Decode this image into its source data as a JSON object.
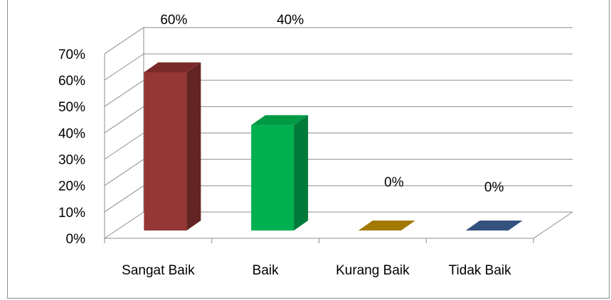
{
  "chart_data": {
    "type": "bar",
    "categories": [
      "Sangat Baik",
      "Baik",
      "Kurang Baik",
      "Tidak Baik"
    ],
    "values": [
      60,
      40,
      0,
      0
    ],
    "data_labels": [
      "60%",
      "40%",
      "0%",
      "0%"
    ],
    "y_ticks": [
      "0%",
      "10%",
      "20%",
      "30%",
      "40%",
      "50%",
      "60%",
      "70%"
    ],
    "ylim": [
      0,
      70
    ],
    "grid": true,
    "style": "3d-column",
    "colors": [
      "#953735",
      "#00b050",
      "#c09000",
      "#3d5f93"
    ],
    "side_colors": [
      "#632523",
      "#007a38",
      "#8a6700",
      "#2a4470"
    ],
    "top_colors": [
      "#7a2b29",
      "#009a45",
      "#a37a00",
      "#33527f"
    ]
  }
}
